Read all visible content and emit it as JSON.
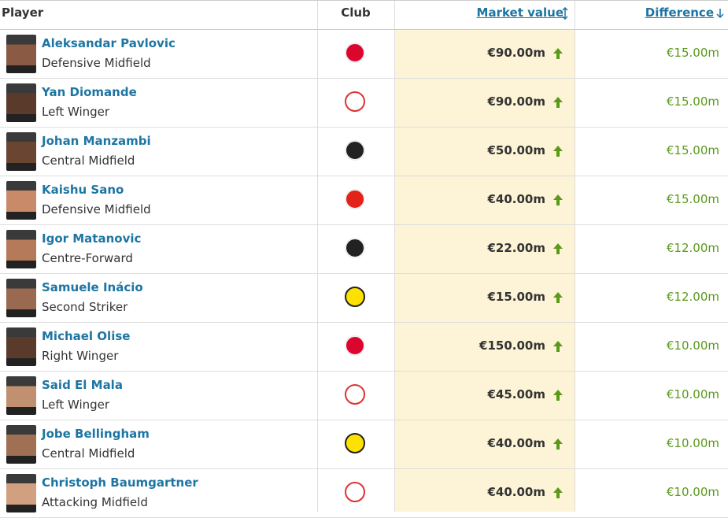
{
  "header": {
    "player": "Player",
    "club": "Club",
    "market_value": "Market value",
    "difference": "Difference"
  },
  "table": {
    "rows": [
      {
        "name": "Aleksandar Pavlovic",
        "position": "Defensive Midfield",
        "market_value": "€90.00m",
        "difference": "€15.00m"
      },
      {
        "name": "Yan Diomande",
        "position": "Left Winger",
        "market_value": "€90.00m",
        "difference": "€15.00m"
      },
      {
        "name": "Johan Manzambi",
        "position": "Central Midfield",
        "market_value": "€50.00m",
        "difference": "€15.00m"
      },
      {
        "name": "Kaishu Sano",
        "position": "Defensive Midfield",
        "market_value": "€40.00m",
        "difference": "€15.00m"
      },
      {
        "name": "Igor Matanovic",
        "position": "Centre-Forward",
        "market_value": "€22.00m",
        "difference": "€12.00m"
      },
      {
        "name": "Samuele Inácio",
        "position": "Second Striker",
        "market_value": "€15.00m",
        "difference": "€12.00m"
      },
      {
        "name": "Michael Olise",
        "position": "Right Winger",
        "market_value": "€150.00m",
        "difference": "€10.00m"
      },
      {
        "name": "Said El Mala",
        "position": "Left Winger",
        "market_value": "€45.00m",
        "difference": "€10.00m"
      },
      {
        "name": "Jobe Bellingham",
        "position": "Central Midfield",
        "market_value": "€40.00m",
        "difference": "€10.00m"
      },
      {
        "name": "Christoph Baumgartner",
        "position": "Attacking Midfield",
        "market_value": "€40.00m",
        "difference": "€10.00m"
      }
    ]
  }
}
